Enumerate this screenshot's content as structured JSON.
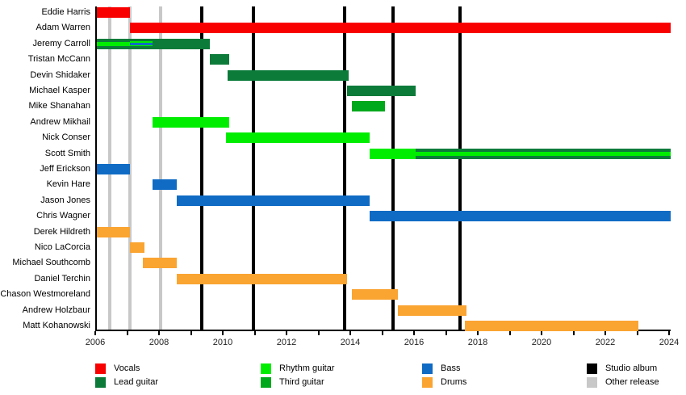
{
  "colors": {
    "vocals": "#f80000",
    "lead_guitar": "#0c7b3a",
    "rhythm_guitar": "#00ed00",
    "third_guitar": "#00a81c",
    "bass": "#0f6bc4",
    "drums": "#faa432",
    "studio_album": "#000000",
    "other_release": "#c8c8c8",
    "axis": "#000000",
    "text": "#000000"
  },
  "chart_data": {
    "type": "bar",
    "subtype": "band-member-timeline-gantt",
    "title": "",
    "xlabel": "",
    "ylabel": "",
    "x_axis": {
      "min": 2006,
      "max": 2024,
      "minor_tick_every": 1,
      "labels": [
        "2006",
        "2008",
        "2010",
        "2012",
        "2014",
        "2016",
        "2018",
        "2020",
        "2022",
        "2024"
      ]
    },
    "legend_position": "bottom",
    "members": [
      {
        "name": "Eddie Harris",
        "segments": [
          {
            "start": 2006.0,
            "end": 2007.05,
            "layers": [
              "vocals"
            ],
            "weights": [
              1
            ]
          }
        ]
      },
      {
        "name": "Adam Warren",
        "segments": [
          {
            "start": 2007.05,
            "end": 2024.0,
            "layers": [
              "vocals"
            ],
            "weights": [
              1
            ]
          }
        ]
      },
      {
        "name": "Jeremy Carroll",
        "segments": [
          {
            "start": 2006.0,
            "end": 2007.05,
            "layers": [
              "lead_guitar",
              "rhythm_guitar",
              "lead_guitar"
            ],
            "weights": [
              4,
              5,
              4
            ]
          },
          {
            "start": 2007.05,
            "end": 2007.75,
            "layers": [
              "lead_guitar",
              "rhythm_guitar",
              "bass",
              "rhythm_guitar",
              "lead_guitar"
            ],
            "weights": [
              7,
              3,
              6,
              3,
              7
            ]
          },
          {
            "start": 2007.75,
            "end": 2009.55,
            "layers": [
              "lead_guitar"
            ],
            "weights": [
              1
            ]
          }
        ]
      },
      {
        "name": "Tristan McCann",
        "segments": [
          {
            "start": 2009.55,
            "end": 2010.15,
            "layers": [
              "lead_guitar"
            ],
            "weights": [
              1
            ]
          }
        ]
      },
      {
        "name": "Devin Shidaker",
        "segments": [
          {
            "start": 2010.1,
            "end": 2013.9,
            "layers": [
              "lead_guitar"
            ],
            "weights": [
              1
            ]
          }
        ]
      },
      {
        "name": "Michael Kasper",
        "segments": [
          {
            "start": 2013.85,
            "end": 2016.0,
            "layers": [
              "lead_guitar"
            ],
            "weights": [
              1
            ]
          }
        ]
      },
      {
        "name": "Mike Shanahan",
        "segments": [
          {
            "start": 2014.0,
            "end": 2015.05,
            "layers": [
              "third_guitar"
            ],
            "weights": [
              1
            ]
          }
        ]
      },
      {
        "name": "Andrew Mikhail",
        "segments": [
          {
            "start": 2007.75,
            "end": 2010.15,
            "layers": [
              "rhythm_guitar"
            ],
            "weights": [
              1
            ]
          }
        ]
      },
      {
        "name": "Nick Conser",
        "segments": [
          {
            "start": 2010.05,
            "end": 2014.55,
            "layers": [
              "rhythm_guitar"
            ],
            "weights": [
              1
            ]
          }
        ]
      },
      {
        "name": "Scott Smith",
        "segments": [
          {
            "start": 2014.55,
            "end": 2016.0,
            "layers": [
              "rhythm_guitar"
            ],
            "weights": [
              1
            ]
          },
          {
            "start": 2016.0,
            "end": 2024.0,
            "layers": [
              "lead_guitar",
              "rhythm_guitar",
              "lead_guitar"
            ],
            "weights": [
              4,
              5,
              4
            ]
          }
        ]
      },
      {
        "name": "Jeff Erickson",
        "segments": [
          {
            "start": 2006.0,
            "end": 2007.05,
            "layers": [
              "bass"
            ],
            "weights": [
              1
            ]
          }
        ]
      },
      {
        "name": "Kevin Hare",
        "segments": [
          {
            "start": 2007.75,
            "end": 2008.5,
            "layers": [
              "bass"
            ],
            "weights": [
              1
            ]
          }
        ]
      },
      {
        "name": "Jason Jones",
        "segments": [
          {
            "start": 2008.5,
            "end": 2014.55,
            "layers": [
              "bass"
            ],
            "weights": [
              1
            ]
          }
        ]
      },
      {
        "name": "Chris Wagner",
        "segments": [
          {
            "start": 2014.55,
            "end": 2024.0,
            "layers": [
              "bass"
            ],
            "weights": [
              1
            ]
          }
        ]
      },
      {
        "name": "Derek Hildreth",
        "segments": [
          {
            "start": 2006.0,
            "end": 2007.05,
            "layers": [
              "drums"
            ],
            "weights": [
              1
            ]
          }
        ]
      },
      {
        "name": "Nico LaCorcia",
        "segments": [
          {
            "start": 2007.05,
            "end": 2007.5,
            "layers": [
              "drums"
            ],
            "weights": [
              1
            ]
          }
        ]
      },
      {
        "name": "Michael Southcomb",
        "segments": [
          {
            "start": 2007.45,
            "end": 2008.5,
            "layers": [
              "drums"
            ],
            "weights": [
              1
            ]
          }
        ]
      },
      {
        "name": "Daniel Terchin",
        "segments": [
          {
            "start": 2008.5,
            "end": 2013.85,
            "layers": [
              "drums"
            ],
            "weights": [
              1
            ]
          }
        ]
      },
      {
        "name": "Chason Westmoreland",
        "segments": [
          {
            "start": 2014.0,
            "end": 2015.45,
            "layers": [
              "drums"
            ],
            "weights": [
              1
            ]
          }
        ]
      },
      {
        "name": "Andrew Holzbaur",
        "segments": [
          {
            "start": 2015.45,
            "end": 2017.6,
            "layers": [
              "drums"
            ],
            "weights": [
              1
            ]
          }
        ]
      },
      {
        "name": "Matt Kohanowski",
        "segments": [
          {
            "start": 2017.55,
            "end": 2023.0,
            "layers": [
              "drums"
            ],
            "weights": [
              1
            ]
          }
        ]
      }
    ],
    "events": {
      "studio_albums": [
        2009.3,
        2010.9,
        2013.77,
        2015.28,
        2017.4
      ],
      "other_releases": [
        2006.4,
        2007.05,
        2008.0
      ]
    }
  },
  "legend": {
    "columns": [
      [
        {
          "label": "Vocals",
          "color_key": "vocals"
        },
        {
          "label": "Lead guitar",
          "color_key": "lead_guitar"
        }
      ],
      [
        {
          "label": "Rhythm guitar",
          "color_key": "rhythm_guitar"
        },
        {
          "label": "Third guitar",
          "color_key": "third_guitar"
        }
      ],
      [
        {
          "label": "Bass",
          "color_key": "bass"
        },
        {
          "label": "Drums",
          "color_key": "drums"
        }
      ],
      [
        {
          "label": "Studio album",
          "color_key": "studio_album"
        },
        {
          "label": "Other release",
          "color_key": "other_release"
        }
      ]
    ]
  }
}
